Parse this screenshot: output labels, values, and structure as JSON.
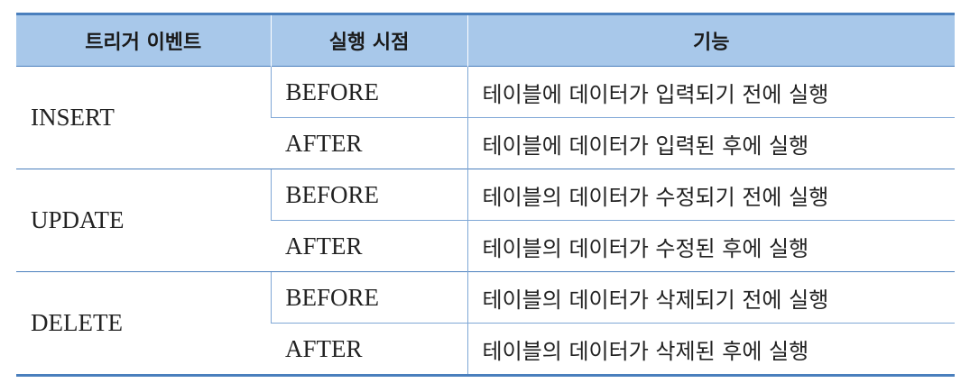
{
  "table": {
    "headers": {
      "event": "트리거 이벤트",
      "timing": "실행 시점",
      "function": "기능"
    },
    "groups": [
      {
        "event": "INSERT",
        "rows": [
          {
            "timing": "BEFORE",
            "function": "테이블에 데이터가 입력되기 전에 실행"
          },
          {
            "timing": "AFTER",
            "function": "테이블에 데이터가 입력된 후에 실행"
          }
        ]
      },
      {
        "event": "UPDATE",
        "rows": [
          {
            "timing": "BEFORE",
            "function": "테이블의 데이터가 수정되기 전에 실행"
          },
          {
            "timing": "AFTER",
            "function": "테이블의 데이터가 수정된 후에 실행"
          }
        ]
      },
      {
        "event": "DELETE",
        "rows": [
          {
            "timing": "BEFORE",
            "function": "테이블의 데이터가 삭제되기 전에 실행"
          },
          {
            "timing": "AFTER",
            "function": "테이블의 데이터가 삭제된 후에 실행"
          }
        ]
      }
    ]
  }
}
